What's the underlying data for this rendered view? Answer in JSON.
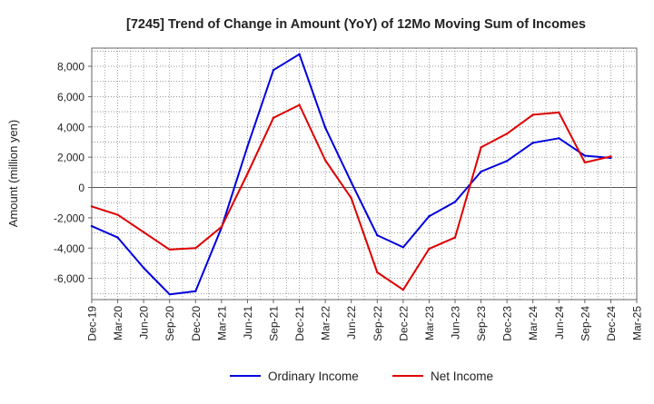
{
  "chart_data": {
    "type": "line",
    "title": "[7245]  Trend of Change in Amount (YoY) of 12Mo Moving Sum of Incomes",
    "ylabel": "Amount (million yen)",
    "xlabel": "",
    "ylim": [
      -7400,
      9200
    ],
    "yticks": [
      -6000,
      -4000,
      -2000,
      0,
      2000,
      4000,
      6000,
      8000
    ],
    "ytick_labels": [
      "-6,000",
      "-4,000",
      "-2,000",
      "0",
      "2,000",
      "4,000",
      "6,000",
      "8,000"
    ],
    "categories": [
      "Dec-19",
      "Mar-20",
      "Jun-20",
      "Sep-20",
      "Dec-20",
      "Mar-21",
      "Jun-21",
      "Sep-21",
      "Dec-21",
      "Mar-22",
      "Jun-22",
      "Sep-22",
      "Dec-22",
      "Mar-23",
      "Jun-23",
      "Sep-23",
      "Dec-23",
      "Mar-24",
      "Jun-24",
      "Sep-24",
      "Dec-24",
      "Mar-25"
    ],
    "grid": true,
    "legend_position": "bottom",
    "series": [
      {
        "name": "Ordinary Income",
        "color": "#0000dd",
        "values": [
          -2550,
          -3300,
          -5300,
          -7050,
          -6850,
          -2650,
          2700,
          7750,
          8800,
          3950,
          350,
          -3150,
          -3950,
          -1900,
          -950,
          1050,
          1750,
          2950,
          3250,
          2100,
          1950,
          null
        ]
      },
      {
        "name": "Net Income",
        "color": "#dd0000",
        "values": [
          -1250,
          -1800,
          -2950,
          -4100,
          -4000,
          -2600,
          900,
          4600,
          5450,
          1800,
          -700,
          -5600,
          -6750,
          -4050,
          -3300,
          2650,
          3550,
          4800,
          4950,
          1650,
          2050,
          null
        ]
      }
    ]
  }
}
